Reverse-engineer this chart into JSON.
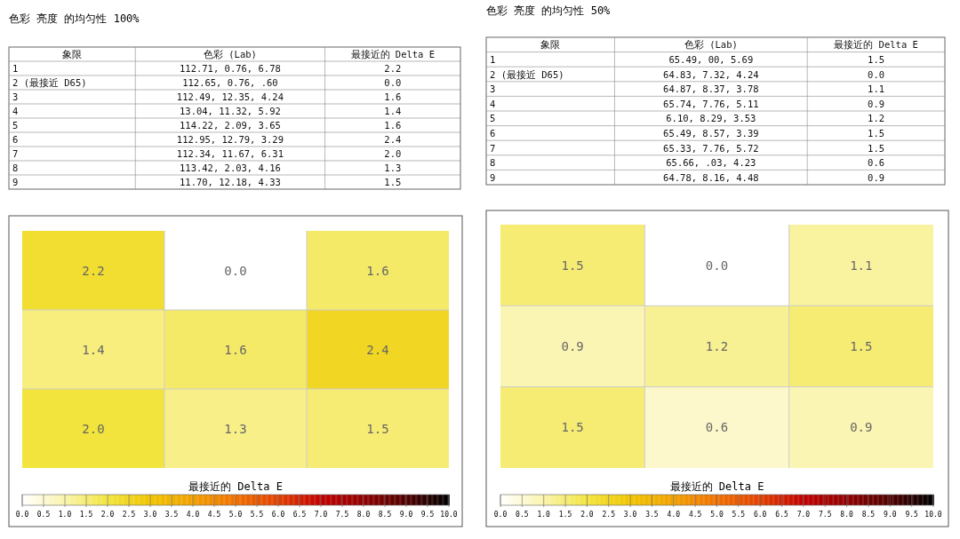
{
  "chart_data": [
    {
      "type": "other",
      "title": "色彩 亮度 的均匀性 100%",
      "annotations": [
        "象限",
        "色彩 (Lab)",
        "最接近的 Delta E",
        "1",
        "112.71,    0.76,    6.78",
        "2.2",
        "2 (最接近 D65)",
        "112.65,    0.76,    .60",
        "0.0",
        "3",
        "112.49,   12.35,    4.24",
        "1.6",
        "4",
        "13.04,   11.32,    5.92",
        "1.4",
        "5",
        "114.22,    2.09,    3.65",
        "1.6",
        "6",
        "112.95,   12.79,    3.29",
        "2.4",
        "7",
        "112.34,   11.67,    6.31",
        "2.0",
        "8",
        "113.42,    2.03,    4.16",
        "1.3",
        "9",
        "11.70,   12.18,    4.33",
        "1.5"
      ]
    },
    {
      "type": "heatmap",
      "categories": [
        null,
        null,
        null
      ],
      "y_categories": [
        null,
        null,
        null
      ],
      "grid": true,
      "cells": [
        [
          2.2,
          0.0,
          1.6
        ],
        [
          1.4,
          1.6,
          2.4
        ],
        [
          2.0,
          1.3,
          1.5
        ]
      ],
      "cell_labels": [
        [
          "2.2",
          "0.0",
          "1.6"
        ],
        [
          "1.4",
          "1.6",
          "2.4"
        ],
        [
          "2.0",
          "1.3",
          "1.5"
        ]
      ],
      "clabel": "最接近的 Delta E",
      "clim": [
        0,
        10
      ],
      "cticks": [
        {
          "value": 0,
          "label": "0.0"
        },
        {
          "value": 0.5,
          "label": "0.5"
        },
        {
          "value": 1,
          "label": "1.0"
        },
        {
          "value": 1.5,
          "label": "1.5"
        },
        {
          "value": 2,
          "label": "2.0"
        },
        {
          "value": 2.5,
          "label": "2.5"
        },
        {
          "value": 3,
          "label": "3.0"
        },
        {
          "value": 3.5,
          "label": "3.5"
        },
        {
          "value": 4,
          "label": "4.0"
        },
        {
          "value": 4.5,
          "label": "4.5"
        },
        {
          "value": 5,
          "label": "5.0"
        },
        {
          "value": 5.5,
          "label": "5.5"
        },
        {
          "value": 6,
          "label": "6.0"
        },
        {
          "value": 6.5,
          "label": "6.5"
        },
        {
          "value": 7,
          "label": "7.0"
        },
        {
          "value": 7.5,
          "label": "7.5"
        },
        {
          "value": 8,
          "label": "8.0"
        },
        {
          "value": 8.5,
          "label": "8.5"
        },
        {
          "value": 9,
          "label": "9.0"
        },
        {
          "value": 9.5,
          "label": "9.5"
        },
        {
          "value": 10,
          "label": "10.0"
        }
      ]
    },
    {
      "type": "other",
      "title": "色彩 亮度 的均匀性 50%",
      "annotations": [
        "象限",
        "色彩 (Lab)",
        "最接近的 Delta E",
        "1",
        "65.49,    00,    5.69",
        "1.5",
        "2 (最接近 D65)",
        "64.83,    7.32,    4.24",
        "0.0",
        "3",
        "64.87,    8.37,    3.78",
        "1.1",
        "4",
        "65.74,    7.76,    5.11",
        "0.9",
        "5",
        "6.10,    8.29,    3.53",
        "1.2",
        "6",
        "65.49,    8.57,    3.39",
        "1.5",
        "7",
        "65.33,    7.76,    5.72",
        "1.5",
        "8",
        "65.66,    .03,    4.23",
        "0.6",
        "9",
        "64.78,    8.16,    4.48",
        "0.9"
      ]
    },
    {
      "type": "heatmap",
      "categories": [
        null,
        null,
        null
      ],
      "y_categories": [
        null,
        null,
        null
      ],
      "grid": true,
      "cells": [
        [
          1.5,
          0.0,
          1.1
        ],
        [
          0.9,
          1.2,
          1.5
        ],
        [
          1.5,
          0.6,
          0.9
        ]
      ],
      "cell_labels": [
        [
          "1.5",
          "0.0",
          "1.1"
        ],
        [
          "0.9",
          "1.2",
          "1.5"
        ],
        [
          "1.5",
          "0.6",
          "0.9"
        ]
      ],
      "clabel": "最接近的 Delta E",
      "clim": [
        0,
        10
      ],
      "cticks": [
        {
          "value": 0,
          "label": "0.0"
        },
        {
          "value": 0.5,
          "label": "0.5"
        },
        {
          "value": 1,
          "label": "1.0"
        },
        {
          "value": 1.5,
          "label": "1.5"
        },
        {
          "value": 2,
          "label": "2.0"
        },
        {
          "value": 2.5,
          "label": "2.5"
        },
        {
          "value": 3,
          "label": "3.0"
        },
        {
          "value": 3.5,
          "label": "3.5"
        },
        {
          "value": 4,
          "label": "4.0"
        },
        {
          "value": 4.5,
          "label": "4.5"
        },
        {
          "value": 5,
          "label": "5.0"
        },
        {
          "value": 5.5,
          "label": "5.5"
        },
        {
          "value": 6,
          "label": "6.0"
        },
        {
          "value": 6.5,
          "label": "6.5"
        },
        {
          "value": 7,
          "label": "7.0"
        },
        {
          "value": 7.5,
          "label": "7.5"
        },
        {
          "value": 8,
          "label": "8.0"
        },
        {
          "value": 8.5,
          "label": "8.5"
        },
        {
          "value": 9,
          "label": "9.0"
        },
        {
          "value": 9.5,
          "label": "9.5"
        },
        {
          "value": 10,
          "label": "10.0"
        }
      ]
    }
  ]
}
